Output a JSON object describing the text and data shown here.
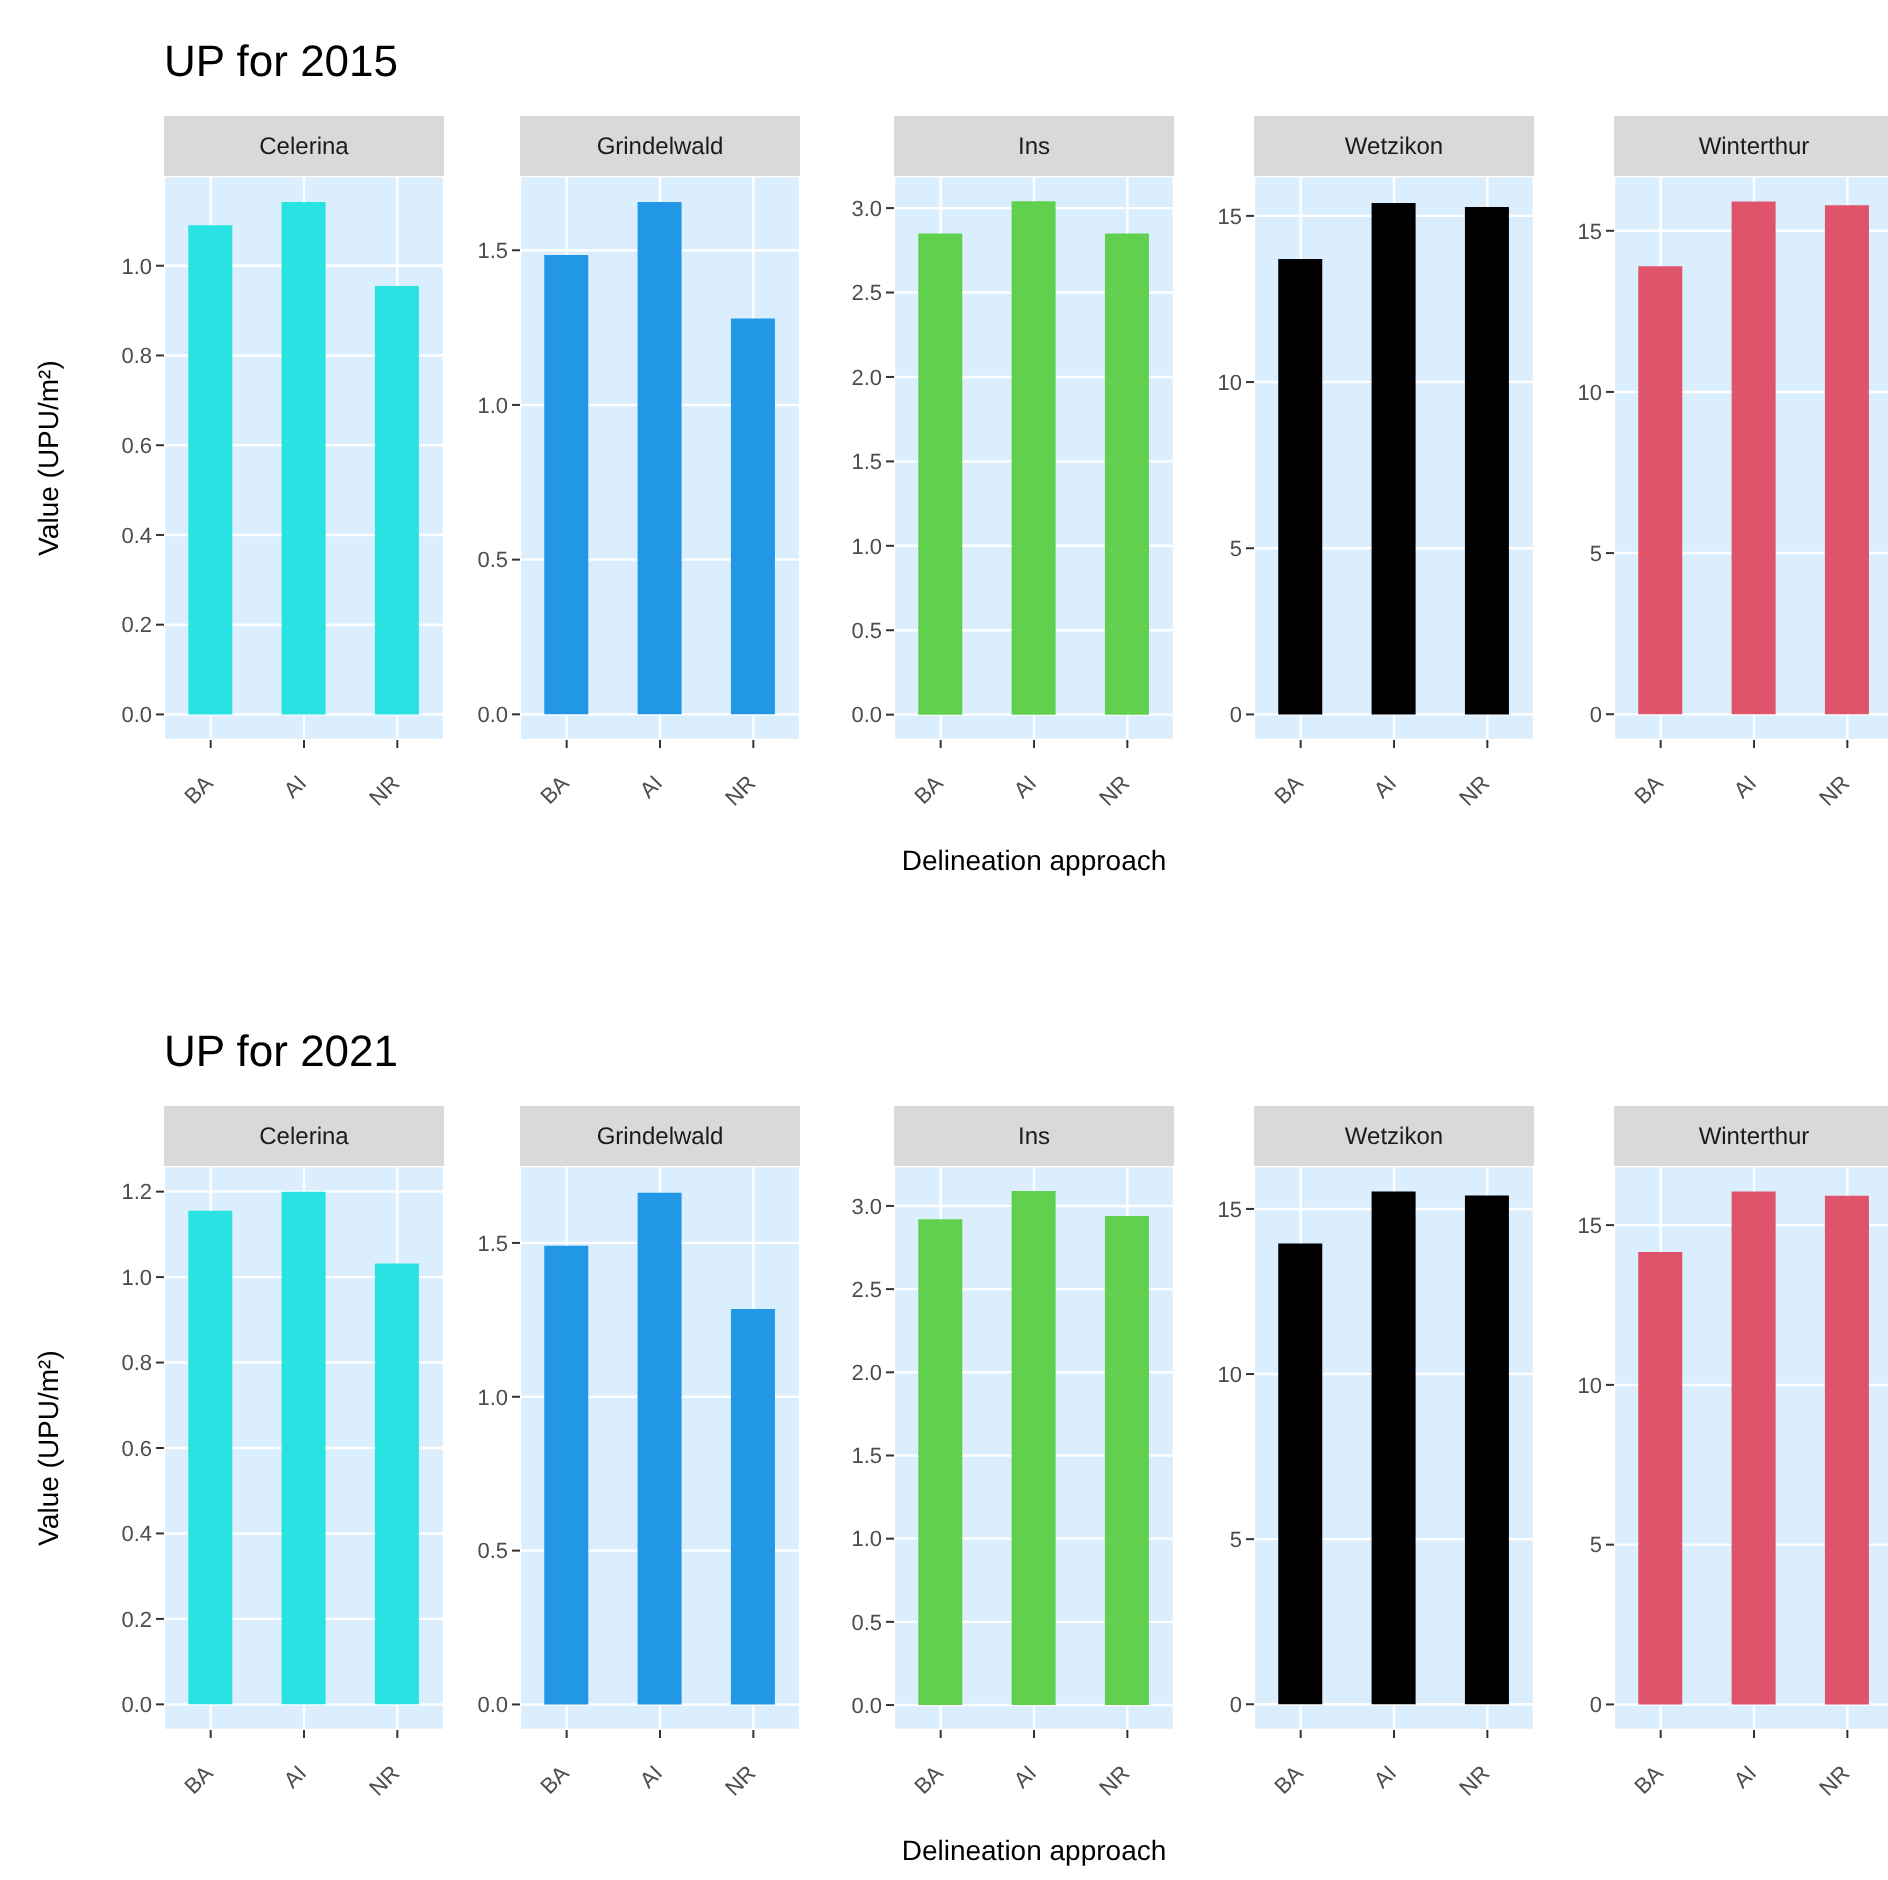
{
  "chart_data": [
    {
      "type": "bar",
      "title": "UP for 2015",
      "subtitle": "Celerina",
      "ylabel": "Value (UPU/m²)",
      "categories": [
        "BA",
        "AI",
        "NR"
      ],
      "values": [
        1.09,
        1.142,
        0.955
      ],
      "color": "#29e2e2",
      "ylim": [
        -0.057,
        1.2
      ],
      "yticks": [
        {
          "value": 0,
          "label": "0.0"
        },
        {
          "value": 0.2,
          "label": "0.2"
        },
        {
          "value": 0.4,
          "label": "0.4"
        },
        {
          "value": 0.6,
          "label": "0.6"
        },
        {
          "value": 0.8,
          "label": "0.8"
        },
        {
          "value": 1,
          "label": "1.0"
        }
      ],
      "grid": true
    },
    {
      "type": "bar",
      "subtitle": "Grindelwald",
      "categories": [
        "BA",
        "AI",
        "NR"
      ],
      "values": [
        1.485,
        1.656,
        1.279
      ],
      "color": "#2297e6",
      "ylim": [
        -0.083,
        1.74
      ],
      "yticks": [
        {
          "value": 0,
          "label": "0.0"
        },
        {
          "value": 0.5,
          "label": "0.5"
        },
        {
          "value": 1,
          "label": "1.0"
        },
        {
          "value": 1.5,
          "label": "1.5"
        }
      ],
      "grid": true
    },
    {
      "type": "bar",
      "subtitle": "Ins",
      "xlabel": "Delineation approach",
      "categories": [
        "BA",
        "AI",
        "NR"
      ],
      "values": [
        2.85,
        3.04,
        2.85
      ],
      "color": "#61d04f",
      "ylim": [
        -0.15,
        3.19
      ],
      "yticks": [
        {
          "value": 0,
          "label": "0.0"
        },
        {
          "value": 0.5,
          "label": "0.5"
        },
        {
          "value": 1,
          "label": "1.0"
        },
        {
          "value": 1.5,
          "label": "1.5"
        },
        {
          "value": 2,
          "label": "2.0"
        },
        {
          "value": 2.5,
          "label": "2.5"
        },
        {
          "value": 3,
          "label": "3.0"
        }
      ],
      "grid": true
    },
    {
      "type": "bar",
      "subtitle": "Wetzikon",
      "categories": [
        "BA",
        "AI",
        "NR"
      ],
      "values": [
        13.7,
        15.39,
        15.27
      ],
      "color": "#000000",
      "ylim": [
        -0.77,
        16.2
      ],
      "yticks": [
        0,
        5,
        10,
        15
      ],
      "grid": true
    },
    {
      "type": "bar",
      "subtitle": "Winterthur",
      "categories": [
        "BA",
        "AI",
        "NR"
      ],
      "values": [
        13.9,
        15.91,
        15.79
      ],
      "color": "#df536b",
      "ylim": [
        -0.8,
        16.7
      ],
      "yticks": [
        0,
        5,
        10,
        15
      ],
      "grid": true
    },
    {
      "type": "bar",
      "title": "UP for 2021",
      "subtitle": "Celerina",
      "ylabel": "Value (UPU/m²)",
      "categories": [
        "BA",
        "AI",
        "NR"
      ],
      "values": [
        1.155,
        1.2,
        1.032
      ],
      "color": "#29e2e2",
      "ylim": [
        -0.06,
        1.26
      ],
      "yticks": [
        {
          "value": 0,
          "label": "0.0"
        },
        {
          "value": 0.2,
          "label": "0.2"
        },
        {
          "value": 0.4,
          "label": "0.4"
        },
        {
          "value": 0.6,
          "label": "0.6"
        },
        {
          "value": 0.8,
          "label": "0.8"
        },
        {
          "value": 1,
          "label": "1.0"
        },
        {
          "value": 1.2,
          "label": "1.2"
        }
      ],
      "grid": true
    },
    {
      "type": "bar",
      "subtitle": "Grindelwald",
      "categories": [
        "BA",
        "AI",
        "NR"
      ],
      "values": [
        1.491,
        1.663,
        1.285
      ],
      "color": "#2297e6",
      "ylim": [
        -0.083,
        1.75
      ],
      "yticks": [
        {
          "value": 0,
          "label": "0.0"
        },
        {
          "value": 0.5,
          "label": "0.5"
        },
        {
          "value": 1,
          "label": "1.0"
        },
        {
          "value": 1.5,
          "label": "1.5"
        }
      ],
      "grid": true
    },
    {
      "type": "bar",
      "subtitle": "Ins",
      "xlabel": "Delineation approach",
      "categories": [
        "BA",
        "AI",
        "NR"
      ],
      "values": [
        2.92,
        3.09,
        2.94
      ],
      "color": "#61d04f",
      "ylim": [
        -0.15,
        3.24
      ],
      "yticks": [
        {
          "value": 0,
          "label": "0.0"
        },
        {
          "value": 0.5,
          "label": "0.5"
        },
        {
          "value": 1,
          "label": "1.0"
        },
        {
          "value": 1.5,
          "label": "1.5"
        },
        {
          "value": 2,
          "label": "2.0"
        },
        {
          "value": 2.5,
          "label": "2.5"
        },
        {
          "value": 3,
          "label": "3.0"
        }
      ],
      "grid": true
    },
    {
      "type": "bar",
      "subtitle": "Wetzikon",
      "categories": [
        "BA",
        "AI",
        "NR"
      ],
      "values": [
        13.95,
        15.53,
        15.41
      ],
      "color": "#000000",
      "ylim": [
        -0.78,
        16.3
      ],
      "yticks": [
        0,
        5,
        10,
        15
      ],
      "grid": true
    },
    {
      "type": "bar",
      "subtitle": "Winterthur",
      "categories": [
        "BA",
        "AI",
        "NR"
      ],
      "values": [
        14.16,
        16.05,
        15.92
      ],
      "color": "#df536b",
      "ylim": [
        -0.8,
        16.85
      ],
      "yticks": [
        0,
        5,
        10,
        15
      ],
      "grid": true
    }
  ]
}
